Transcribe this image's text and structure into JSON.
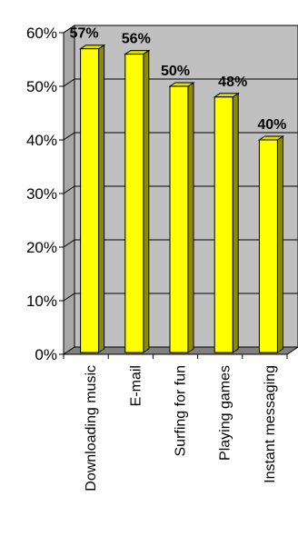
{
  "chart_data": {
    "type": "bar",
    "title": "",
    "xlabel": "",
    "ylabel": "",
    "categories": [
      "Downloading music",
      "E-mail",
      "Surfing for fun",
      "Playing games",
      "Instant messaging"
    ],
    "values": [
      57,
      56,
      50,
      48,
      40
    ],
    "data_labels": [
      "57%",
      "56%",
      "50%",
      "48%",
      "40%"
    ],
    "ylim": [
      0,
      60
    ],
    "y_ticks": [
      0,
      10,
      20,
      30,
      40,
      50,
      60
    ],
    "y_tick_labels": [
      "0%",
      "10%",
      "20%",
      "30%",
      "40%",
      "50%",
      "60%"
    ],
    "grid": true,
    "style": "3d",
    "colors": {
      "bar_face": "#ffff00",
      "bar_side": "#8c8c00",
      "bar_top": "#dede00",
      "plot_back": "#c0c0c0",
      "plot_floor": "#808080",
      "gridline": "#000000"
    }
  }
}
